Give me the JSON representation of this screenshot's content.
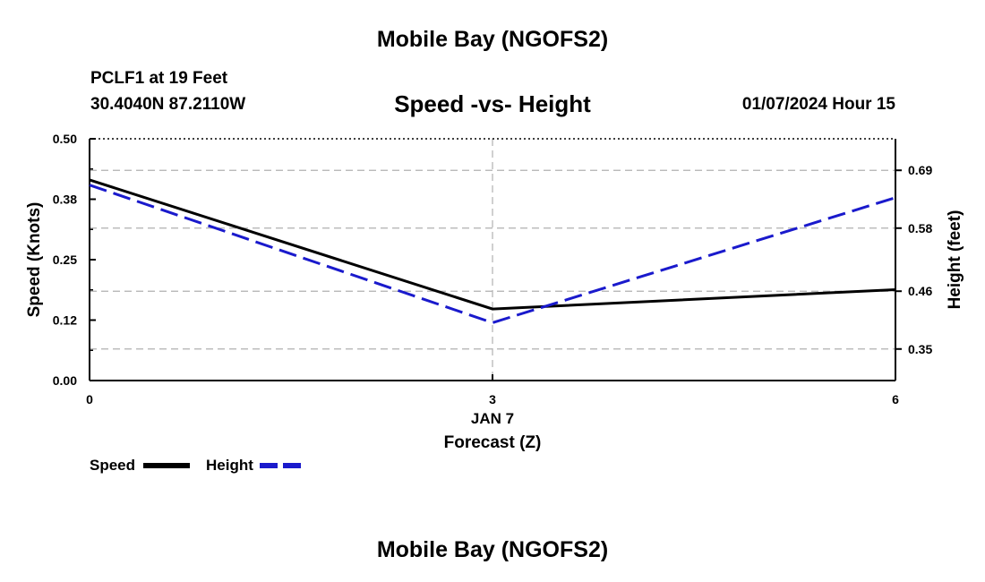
{
  "header": {
    "title": "Mobile Bay (NGOFS2)",
    "station": "PCLF1 at 19 Feet",
    "coords": "30.4040N  87.2110W",
    "datetime": "01/07/2024 Hour 15",
    "footer_title": "Mobile Bay (NGOFS2)"
  },
  "colors": {
    "speed": "#000000",
    "height": "#1a1acc",
    "grid": "#b0b0b0"
  },
  "chart_data": {
    "type": "line",
    "title": "Speed -vs- Height",
    "xlabel": "Forecast (Z)",
    "x_date_label": "JAN 7",
    "ylabel": "Speed (Knots)",
    "y2label": "Height (feet)",
    "x": [
      0,
      3,
      6
    ],
    "x_ticks": [
      "0",
      "3",
      "6"
    ],
    "xlim": [
      0,
      6
    ],
    "ylim": [
      0,
      0.5
    ],
    "y_ticks": [
      "0.00",
      "0.12",
      "0.25",
      "0.38",
      "0.50"
    ],
    "y2lim": [
      0.29,
      0.75
    ],
    "y2_ticks": [
      "0.35",
      "0.46",
      "0.58",
      "0.69"
    ],
    "series": [
      {
        "name": "Speed",
        "axis": "left",
        "style": "solid",
        "values": [
          0.415,
          0.148,
          0.188
        ]
      },
      {
        "name": "Height",
        "axis": "right",
        "style": "dashed",
        "values": [
          0.662,
          0.4,
          0.638
        ]
      }
    ],
    "legend": [
      {
        "label": "Speed"
      },
      {
        "label": "Height"
      }
    ]
  }
}
